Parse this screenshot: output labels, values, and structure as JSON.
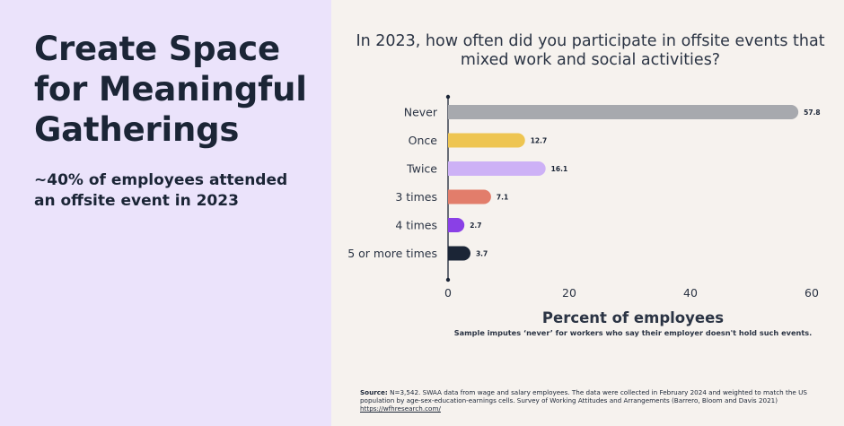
{
  "left": {
    "title": "Create Space for Meaningful Gatherings",
    "subtitle": "~40% of employees attended an offsite event in 2023"
  },
  "colors": {
    "left_bg": "#ebe3fb",
    "right_bg": "#f6f2ee",
    "text_dark": "#1b2536"
  },
  "chart_data": {
    "type": "bar",
    "orientation": "horizontal",
    "title": "In 2023, how often did you participate in offsite events that mixed work and social activities?",
    "categories": [
      "Never",
      "Once",
      "Twice",
      "3 times",
      "4 times",
      "5 or more times"
    ],
    "values": [
      57.8,
      12.7,
      16.1,
      7.1,
      2.7,
      3.7
    ],
    "value_labels": [
      "57.8",
      "12.7",
      "16.1",
      "7.1",
      "2.7",
      "3.7"
    ],
    "bar_colors": [
      "#a7a9ae",
      "#eec551",
      "#cdb1f6",
      "#e27d6b",
      "#8a40e6",
      "#1b2536"
    ],
    "xlabel": "Percent of employees",
    "xlim": [
      0,
      60
    ],
    "xticks": [
      "0",
      "20",
      "40",
      "60"
    ],
    "note": "Sample imputes ‘never’ for workers who say their employer doesn't hold such events."
  },
  "source": {
    "label": "Source:",
    "text": " N=3,542. SWAA data from wage and salary employees. The data were collected in February 2024 and weighted to match the US population by age-sex-education-earnings cells. Survey of Working Attitudes and Arrangements (Barrero, Bloom and Davis 2021)",
    "link": "https://wfhresearch.com/"
  }
}
